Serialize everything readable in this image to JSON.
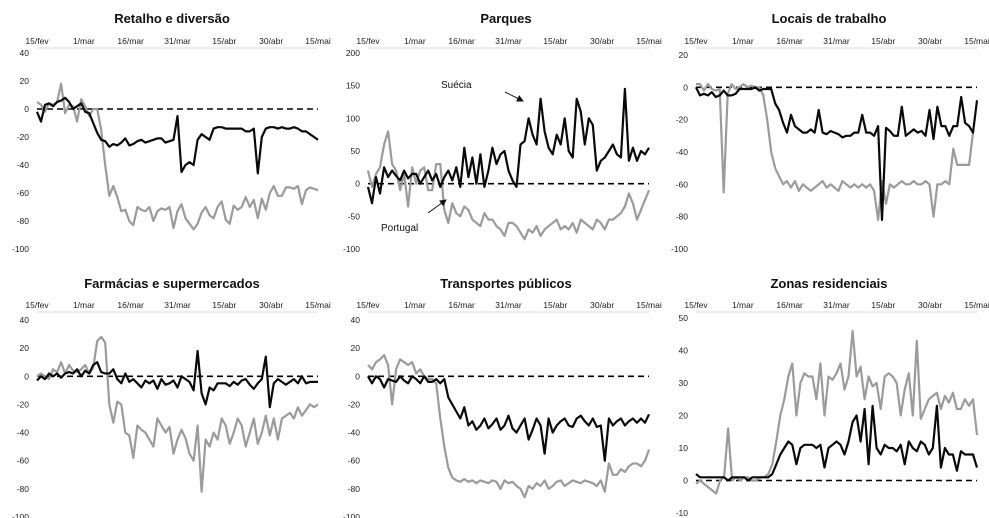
{
  "colors": {
    "suecia": "#0a0a0a",
    "portugal": "#9b9b9b",
    "axis": "#dddddd",
    "baseline": "#000000"
  },
  "chart_data": [
    {
      "type": "line",
      "title": "Retalho e diversão",
      "x_tick_labels": [
        "15/fev",
        "1/mar",
        "16/mar",
        "31/mar",
        "15/abr",
        "30/abr",
        "15/mai"
      ],
      "ylim": [
        -100,
        40
      ],
      "y_ticks": [
        40,
        20,
        0,
        -20,
        -40,
        -60,
        -80,
        -100
      ],
      "baseline": 0,
      "series": [
        {
          "key": "suecia",
          "values": [
            -2,
            -9,
            3,
            4,
            2,
            5,
            6,
            8,
            5,
            0,
            2,
            4,
            -2,
            -3,
            -10,
            -17,
            -22,
            -23,
            -27,
            -25,
            -26,
            -24,
            -21,
            -26,
            -25,
            -23,
            -22,
            -24,
            -23,
            -22,
            -21,
            -21,
            -24,
            -23,
            -22,
            -5,
            -45,
            -40,
            -38,
            -40,
            -22,
            -18,
            -20,
            -22,
            -14,
            -13,
            -13,
            -14,
            -14,
            -14,
            -14,
            -14,
            -16,
            -16,
            -14,
            -46,
            -20,
            -14,
            -13,
            -13,
            -14,
            -13,
            -14,
            -14,
            -13,
            -14,
            -16,
            -16,
            -18,
            -20,
            -22
          ]
        },
        {
          "key": "portugal",
          "values": [
            5,
            3,
            -2,
            4,
            3,
            5,
            18,
            -3,
            3,
            2,
            -9,
            7,
            2,
            -5,
            0,
            0,
            -15,
            -40,
            -62,
            -55,
            -63,
            -73,
            -72,
            -80,
            -83,
            -70,
            -72,
            -73,
            -70,
            -80,
            -73,
            -71,
            -72,
            -70,
            -85,
            -73,
            -68,
            -78,
            -82,
            -86,
            -82,
            -74,
            -70,
            -76,
            -78,
            -70,
            -66,
            -79,
            -82,
            -69,
            -72,
            -70,
            -63,
            -70,
            -65,
            -78,
            -64,
            -72,
            -60,
            -55,
            -62,
            -62,
            -56,
            -56,
            -57,
            -55,
            -68,
            -58,
            -56,
            -57,
            -58
          ]
        }
      ]
    },
    {
      "type": "line",
      "title": "Parques",
      "x_tick_labels": [
        "15/fev",
        "1/mar",
        "16/mar",
        "31/mar",
        "15/abr",
        "30/abr",
        "15/mai"
      ],
      "ylim": [
        -100,
        200
      ],
      "y_ticks": [
        200,
        150,
        100,
        50,
        0,
        -50,
        -100
      ],
      "baseline": 0,
      "series": [
        {
          "key": "suecia",
          "values": [
            -5,
            -30,
            10,
            -15,
            25,
            10,
            20,
            12,
            5,
            20,
            8,
            15,
            15,
            0,
            10,
            20,
            5,
            15,
            -5,
            10,
            20,
            5,
            25,
            -5,
            55,
            10,
            40,
            0,
            45,
            -5,
            20,
            55,
            30,
            45,
            50,
            20,
            5,
            -5,
            60,
            65,
            100,
            75,
            60,
            130,
            80,
            55,
            45,
            75,
            60,
            100,
            50,
            40,
            130,
            110,
            60,
            100,
            90,
            20,
            35,
            40,
            50,
            60,
            45,
            40,
            145,
            35,
            55,
            35,
            50,
            45,
            55
          ]
        },
        {
          "key": "portugal",
          "values": [
            20,
            -5,
            15,
            25,
            60,
            80,
            30,
            20,
            -10,
            15,
            -35,
            25,
            0,
            20,
            25,
            -10,
            -10,
            30,
            30,
            -40,
            -60,
            -30,
            -45,
            -50,
            -35,
            -40,
            -55,
            -60,
            -65,
            -45,
            -55,
            -55,
            -65,
            -70,
            -80,
            -60,
            -60,
            -65,
            -75,
            -85,
            -70,
            -75,
            -65,
            -80,
            -70,
            -65,
            -60,
            -55,
            -70,
            -65,
            -70,
            -60,
            -75,
            -55,
            -60,
            -65,
            -70,
            -55,
            -60,
            -70,
            -55,
            -55,
            -50,
            -45,
            -35,
            -15,
            -30,
            -55,
            -40,
            -25,
            -10
          ]
        }
      ],
      "annotations": [
        {
          "text": "Suécia"
        },
        {
          "text": "Portugal"
        }
      ]
    },
    {
      "type": "line",
      "title": "Locais de trabalho",
      "x_tick_labels": [
        "15/fev",
        "1/mar",
        "16/mar",
        "31/mar",
        "15/abr",
        "30/abr",
        "15/mai"
      ],
      "ylim": [
        -100,
        20
      ],
      "y_ticks": [
        20,
        0,
        -20,
        -40,
        -60,
        -80,
        -100
      ],
      "baseline": 0,
      "series": [
        {
          "key": "suecia",
          "values": [
            0,
            -5,
            -4,
            -5,
            -3,
            -6,
            -5,
            -2,
            -5,
            -5,
            -4,
            -1,
            -1,
            -1,
            -1,
            0,
            -2,
            -1,
            -1,
            -1,
            -10,
            -14,
            -22,
            -28,
            -17,
            -24,
            -26,
            -28,
            -28,
            -26,
            -28,
            -14,
            -28,
            -29,
            -27,
            -28,
            -29,
            -31,
            -30,
            -30,
            -28,
            -28,
            -17,
            -28,
            -28,
            -30,
            -24,
            -82,
            -25,
            -27,
            -30,
            -30,
            -12,
            -30,
            -28,
            -26,
            -28,
            -27,
            -30,
            -14,
            -32,
            -12,
            -24,
            -24,
            -30,
            -24,
            -24,
            -6,
            -22,
            -24,
            -28,
            -8
          ]
        },
        {
          "key": "portugal",
          "values": [
            2,
            2,
            -2,
            2,
            -1,
            -2,
            -1,
            -65,
            -4,
            2,
            -1,
            0,
            2,
            0,
            1,
            0,
            0,
            -5,
            -20,
            -40,
            -50,
            -55,
            -60,
            -58,
            -62,
            -58,
            -64,
            -60,
            -62,
            -64,
            -62,
            -60,
            -58,
            -62,
            -60,
            -62,
            -64,
            -58,
            -60,
            -62,
            -60,
            -62,
            -60,
            -62,
            -60,
            -64,
            -82,
            -58,
            -72,
            -60,
            -62,
            -60,
            -58,
            -60,
            -60,
            -58,
            -60,
            -60,
            -58,
            -60,
            -80,
            -60,
            -60,
            -58,
            -60,
            -38,
            -48,
            -48,
            -48,
            -48,
            -28
          ]
        }
      ]
    },
    {
      "type": "line",
      "title": "Farmácias e supermercados",
      "x_tick_labels": [
        "15/fev",
        "1/mar",
        "16/mar",
        "31/mar",
        "15/abr",
        "30/abr",
        "15/mai"
      ],
      "ylim": [
        -100,
        40
      ],
      "y_ticks": [
        40,
        20,
        0,
        -20,
        -40,
        -60,
        -80,
        -100
      ],
      "baseline": 0,
      "series": [
        {
          "key": "suecia",
          "values": [
            -3,
            0,
            -2,
            2,
            0,
            2,
            -1,
            2,
            3,
            2,
            5,
            0,
            4,
            2,
            8,
            10,
            3,
            2,
            2,
            5,
            -2,
            -5,
            2,
            -4,
            -2,
            -5,
            -8,
            -3,
            -5,
            -3,
            -9,
            -2,
            -6,
            -5,
            -3,
            -8,
            0,
            -2,
            -4,
            -10,
            18,
            -12,
            -20,
            -8,
            -10,
            -5,
            -5,
            -5,
            -7,
            -4,
            -6,
            -3,
            -2,
            -6,
            -9,
            -5,
            -2,
            14,
            -22,
            -5,
            -2,
            -4,
            -6,
            -4,
            -2,
            -5,
            0,
            -5,
            -4,
            -4,
            -4
          ]
        },
        {
          "key": "portugal",
          "values": [
            0,
            2,
            0,
            -2,
            5,
            3,
            10,
            2,
            8,
            4,
            3,
            5,
            8,
            2,
            6,
            25,
            28,
            24,
            -20,
            -33,
            -18,
            -20,
            -40,
            -42,
            -58,
            -35,
            -38,
            -40,
            -45,
            -50,
            -30,
            -35,
            -40,
            -36,
            -55,
            -45,
            -38,
            -44,
            -55,
            -60,
            -35,
            -82,
            -45,
            -50,
            -40,
            -45,
            -30,
            -35,
            -48,
            -40,
            -30,
            -35,
            -50,
            -40,
            -30,
            -48,
            -40,
            -28,
            -42,
            -30,
            -45,
            -30,
            -28,
            -26,
            -30,
            -22,
            -28,
            -24,
            -20,
            -22,
            -20
          ]
        }
      ]
    },
    {
      "type": "line",
      "title": "Transportes públicos",
      "x_tick_labels": [
        "15/fev",
        "1/mar",
        "16/mar",
        "31/mar",
        "15/abr",
        "30/abr",
        "15/mai"
      ],
      "ylim": [
        -100,
        40
      ],
      "y_ticks": [
        40,
        20,
        0,
        -20,
        -40,
        -60,
        -80,
        -100
      ],
      "baseline": 0,
      "series": [
        {
          "key": "suecia",
          "values": [
            0,
            -5,
            0,
            -2,
            -8,
            -2,
            -3,
            -4,
            0,
            -3,
            -5,
            0,
            -2,
            -5,
            0,
            -4,
            -4,
            -2,
            -5,
            -2,
            -15,
            -20,
            -25,
            -30,
            -22,
            -35,
            -32,
            -38,
            -35,
            -30,
            -37,
            -34,
            -30,
            -38,
            -35,
            -28,
            -37,
            -40,
            -35,
            -30,
            -45,
            -38,
            -30,
            -35,
            -55,
            -30,
            -40,
            -35,
            -32,
            -30,
            -35,
            -36,
            -30,
            -28,
            -32,
            -35,
            -30,
            -36,
            -35,
            -60,
            -30,
            -35,
            -32,
            -30,
            -35,
            -32,
            -30,
            -33,
            -30,
            -33,
            -27
          ]
        },
        {
          "key": "portugal",
          "values": [
            8,
            5,
            10,
            12,
            15,
            8,
            -20,
            5,
            12,
            10,
            8,
            10,
            2,
            5,
            0,
            -2,
            -2,
            -5,
            -30,
            -50,
            -65,
            -72,
            -74,
            -75,
            -73,
            -75,
            -74,
            -76,
            -74,
            -75,
            -76,
            -74,
            -75,
            -80,
            -74,
            -76,
            -75,
            -78,
            -80,
            -86,
            -78,
            -80,
            -76,
            -78,
            -74,
            -80,
            -78,
            -75,
            -74,
            -78,
            -76,
            -74,
            -75,
            -76,
            -74,
            -75,
            -76,
            -78,
            -74,
            -82,
            -62,
            -70,
            -70,
            -66,
            -68,
            -64,
            -62,
            -62,
            -64,
            -60,
            -52
          ]
        }
      ]
    },
    {
      "type": "line",
      "title": "Zonas residenciais",
      "x_tick_labels": [
        "15/fev",
        "1/mar",
        "16/mar",
        "31/mar",
        "15/abr",
        "30/abr",
        "15/mai"
      ],
      "ylim": [
        -10,
        50
      ],
      "y_ticks": [
        50,
        40,
        30,
        20,
        10,
        0,
        -10
      ],
      "baseline": 0,
      "series": [
        {
          "key": "suecia",
          "values": [
            2,
            1,
            1,
            1,
            1,
            1,
            1,
            1,
            0,
            1,
            1,
            1,
            1,
            0,
            1,
            1,
            1,
            1,
            1,
            2,
            5,
            8,
            10,
            12,
            11,
            5,
            10,
            11,
            11,
            11,
            10,
            11,
            4,
            10,
            11,
            12,
            11,
            8,
            12,
            18,
            20,
            12,
            22,
            5,
            23,
            10,
            8,
            11,
            10,
            10,
            9,
            11,
            5,
            12,
            10,
            9,
            12,
            11,
            8,
            10,
            23,
            4,
            10,
            8,
            8,
            3,
            9,
            8,
            8,
            8,
            4
          ]
        },
        {
          "key": "portugal",
          "values": [
            -1,
            0,
            -1,
            -2,
            -3,
            -4,
            0,
            1,
            16,
            0,
            1,
            0,
            1,
            1,
            0,
            0,
            1,
            1,
            2,
            5,
            12,
            20,
            25,
            32,
            36,
            20,
            30,
            33,
            32,
            32,
            25,
            36,
            20,
            32,
            31,
            33,
            36,
            28,
            32,
            46,
            32,
            35,
            25,
            32,
            29,
            30,
            22,
            32,
            33,
            32,
            30,
            20,
            28,
            33,
            20,
            43,
            19,
            22,
            25,
            26,
            27,
            22,
            26,
            24,
            27,
            22,
            22,
            25,
            23,
            25,
            14
          ]
        }
      ]
    }
  ]
}
